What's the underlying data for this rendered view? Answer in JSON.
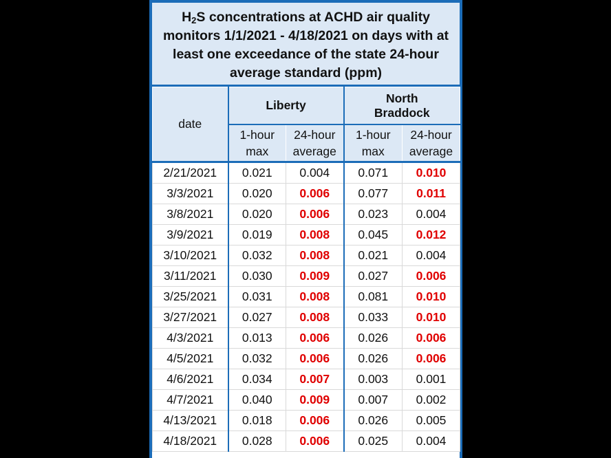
{
  "title": {
    "first": "H",
    "sub": "2",
    "rest": "S concentrations at ACHD air quality monitors 1/1/2021 - 4/18/2021 on days with at least one exceedance of the state 24-hour average standard (ppm)"
  },
  "header": {
    "date": "date",
    "groups": [
      "Liberty",
      "North Braddock"
    ],
    "subcolumns": [
      "1-hour max",
      "24-hour average",
      "1-hour max",
      "24-hour average"
    ]
  },
  "highlight_color": "#e00000",
  "table": {
    "rows": [
      [
        "2/21/2021",
        "0.021",
        "0.004",
        "0.071",
        "0.010"
      ],
      [
        "3/3/2021",
        "0.020",
        "0.006",
        "0.077",
        "0.011"
      ],
      [
        "3/8/2021",
        "0.020",
        "0.006",
        "0.023",
        "0.004"
      ],
      [
        "3/9/2021",
        "0.019",
        "0.008",
        "0.045",
        "0.012"
      ],
      [
        "3/10/2021",
        "0.032",
        "0.008",
        "0.021",
        "0.004"
      ],
      [
        "3/11/2021",
        "0.030",
        "0.009",
        "0.027",
        "0.006"
      ],
      [
        "3/25/2021",
        "0.031",
        "0.008",
        "0.081",
        "0.010"
      ],
      [
        "3/27/2021",
        "0.027",
        "0.008",
        "0.033",
        "0.010"
      ],
      [
        "4/3/2021",
        "0.013",
        "0.006",
        "0.026",
        "0.006"
      ],
      [
        "4/5/2021",
        "0.032",
        "0.006",
        "0.026",
        "0.006"
      ],
      [
        "4/6/2021",
        "0.034",
        "0.007",
        "0.003",
        "0.001"
      ],
      [
        "4/7/2021",
        "0.040",
        "0.009",
        "0.007",
        "0.002"
      ],
      [
        "4/13/2021",
        "0.018",
        "0.006",
        "0.026",
        "0.005"
      ],
      [
        "4/18/2021",
        "0.028",
        "0.006",
        "0.025",
        "0.004"
      ]
    ],
    "exceeds": [
      [
        false,
        false,
        false,
        false,
        true
      ],
      [
        false,
        false,
        true,
        false,
        true
      ],
      [
        false,
        false,
        true,
        false,
        false
      ],
      [
        false,
        false,
        true,
        false,
        true
      ],
      [
        false,
        false,
        true,
        false,
        false
      ],
      [
        false,
        false,
        true,
        false,
        true
      ],
      [
        false,
        false,
        true,
        false,
        true
      ],
      [
        false,
        false,
        true,
        false,
        true
      ],
      [
        false,
        false,
        true,
        false,
        true
      ],
      [
        false,
        false,
        true,
        false,
        true
      ],
      [
        false,
        false,
        true,
        false,
        false
      ],
      [
        false,
        false,
        true,
        false,
        false
      ],
      [
        false,
        false,
        true,
        false,
        false
      ],
      [
        false,
        false,
        true,
        false,
        false
      ]
    ]
  }
}
